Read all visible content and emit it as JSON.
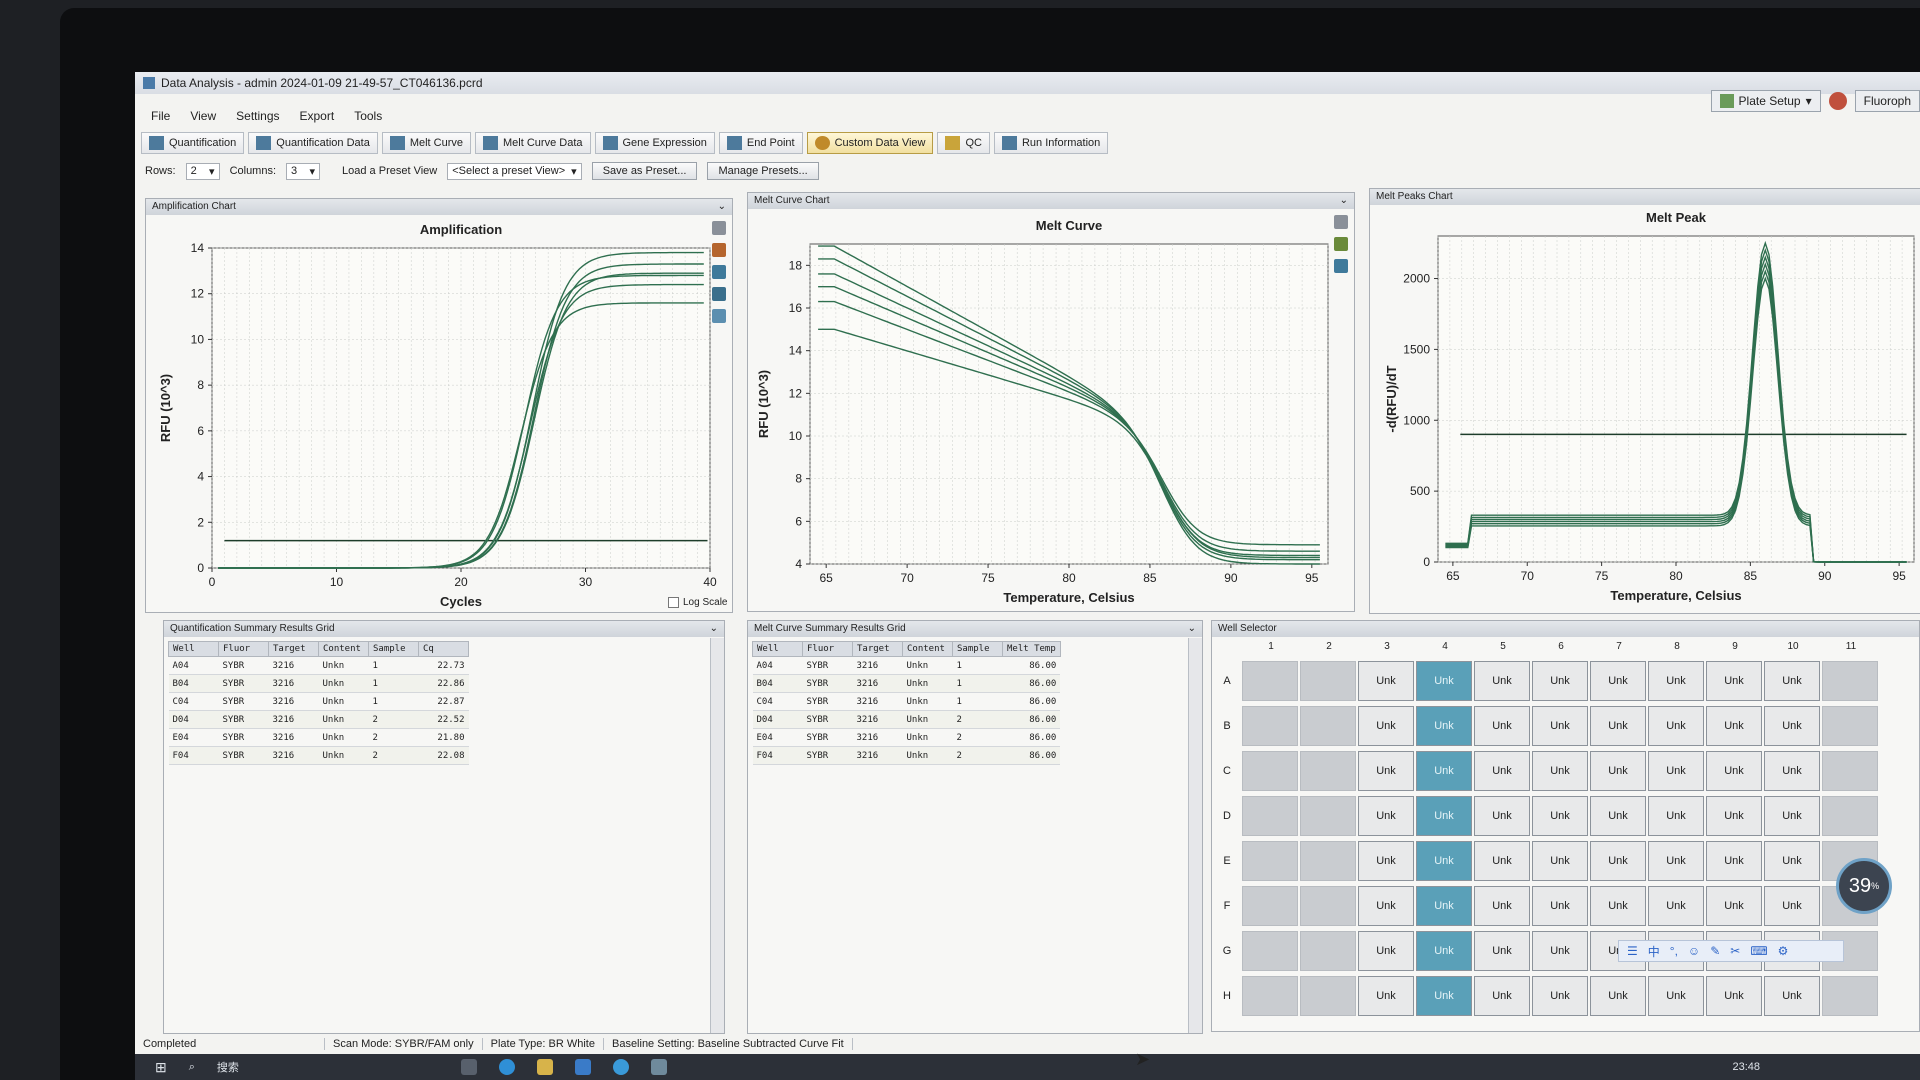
{
  "window": {
    "title": "Data Analysis - admin 2024-01-09 21-49-57_CT046136.pcrd"
  },
  "menu": [
    "File",
    "View",
    "Settings",
    "Export",
    "Tools"
  ],
  "top_right": {
    "plate_setup": "Plate Setup",
    "fluoro": "Fluoroph"
  },
  "tabs": [
    "Quantification",
    "Quantification Data",
    "Melt Curve",
    "Melt Curve Data",
    "Gene Expression",
    "End Point",
    "Custom Data View",
    "QC",
    "Run Information"
  ],
  "active_tab": "Custom Data View",
  "options": {
    "rows_label": "Rows:",
    "rows_value": "2",
    "columns_label": "Columns:",
    "columns_value": "3",
    "load_preset_label": "Load a Preset View",
    "preset_select": "<Select a preset View>",
    "save_preset": "Save as Preset...",
    "manage_presets": "Manage Presets..."
  },
  "panels": {
    "amp": {
      "header": "Amplification Chart",
      "log_scale": "Log Scale"
    },
    "melt": {
      "header": "Melt Curve Chart"
    },
    "peak": {
      "header": "Melt Peaks Chart"
    },
    "quant_grid": {
      "header": "Quantification Summary Results Grid"
    },
    "melt_grid": {
      "header": "Melt Curve Summary Results Grid"
    },
    "well_selector": {
      "header": "Well Selector"
    }
  },
  "quant_table": {
    "columns": [
      "Well",
      "Fluor",
      "Target",
      "Content",
      "Sample",
      "Cq"
    ],
    "rows": [
      [
        "A04",
        "SYBR",
        "3216",
        "Unkn",
        "1",
        "22.73"
      ],
      [
        "B04",
        "SYBR",
        "3216",
        "Unkn",
        "1",
        "22.86"
      ],
      [
        "C04",
        "SYBR",
        "3216",
        "Unkn",
        "1",
        "22.87"
      ],
      [
        "D04",
        "SYBR",
        "3216",
        "Unkn",
        "2",
        "22.52"
      ],
      [
        "E04",
        "SYBR",
        "3216",
        "Unkn",
        "2",
        "21.80"
      ],
      [
        "F04",
        "SYBR",
        "3216",
        "Unkn",
        "2",
        "22.08"
      ]
    ]
  },
  "melt_table": {
    "columns": [
      "Well",
      "Fluor",
      "Target",
      "Content",
      "Sample",
      "Melt Temp"
    ],
    "rows": [
      [
        "A04",
        "SYBR",
        "3216",
        "Unkn",
        "1",
        "86.00"
      ],
      [
        "B04",
        "SYBR",
        "3216",
        "Unkn",
        "1",
        "86.00"
      ],
      [
        "C04",
        "SYBR",
        "3216",
        "Unkn",
        "1",
        "86.00"
      ],
      [
        "D04",
        "SYBR",
        "3216",
        "Unkn",
        "2",
        "86.00"
      ],
      [
        "E04",
        "SYBR",
        "3216",
        "Unkn",
        "2",
        "86.00"
      ],
      [
        "F04",
        "SYBR",
        "3216",
        "Unkn",
        "2",
        "86.00"
      ]
    ]
  },
  "well_selector": {
    "col_labels": [
      "1",
      "2",
      "3",
      "4",
      "5",
      "6",
      "7",
      "8",
      "9",
      "10",
      "11"
    ],
    "row_labels": [
      "A",
      "B",
      "C",
      "D",
      "E",
      "F",
      "G",
      "H"
    ],
    "well_text": "Unk",
    "selected_column": "4"
  },
  "status": {
    "state": "Completed",
    "scan_mode": "Scan Mode: SYBR/FAM only",
    "plate_type": "Plate Type: BR White",
    "baseline": "Baseline Setting: Baseline Subtracted Curve Fit"
  },
  "taskbar": {
    "search": "搜索",
    "clock": "23:48"
  },
  "overlay": {
    "percent": "39"
  },
  "colors": {
    "selected_well": "#5aa0b8",
    "curve": "#2f6f4f",
    "threshold": "#1d3d2a"
  },
  "chart_data": [
    {
      "type": "line",
      "title": "Amplification",
      "xlabel": "Cycles",
      "ylabel": "RFU (10^3)",
      "xlim": [
        0,
        40
      ],
      "ylim": [
        0,
        14
      ],
      "xticks": [
        0,
        10,
        20,
        30,
        40
      ],
      "yticks": [
        0,
        2,
        4,
        6,
        8,
        10,
        12,
        14
      ],
      "threshold": 1.2,
      "log_scale": false,
      "series": [
        {
          "cq": 22.73,
          "plateau": 13.8
        },
        {
          "cq": 22.86,
          "plateau": 13.3
        },
        {
          "cq": 22.87,
          "plateau": 12.9
        },
        {
          "cq": 22.52,
          "plateau": 12.4
        },
        {
          "cq": 21.8,
          "plateau": 11.6
        },
        {
          "cq": 22.08,
          "plateau": 12.8
        }
      ]
    },
    {
      "type": "line",
      "title": "Melt Curve",
      "xlabel": "Temperature, Celsius",
      "ylabel": "RFU (10^3)",
      "xlim": [
        64,
        96
      ],
      "ylim": [
        4,
        19
      ],
      "xticks": [
        65,
        70,
        75,
        80,
        85,
        90,
        95
      ],
      "yticks": [
        4,
        6,
        8,
        10,
        12,
        14,
        16,
        18
      ],
      "melt_temp": 86,
      "series": [
        {
          "start": 18.9,
          "end": 4.0
        },
        {
          "start": 18.3,
          "end": 4.2
        },
        {
          "start": 17.6,
          "end": 4.4
        },
        {
          "start": 17.0,
          "end": 4.6
        },
        {
          "start": 16.3,
          "end": 4.9
        },
        {
          "start": 15.0,
          "end": 4.3
        }
      ]
    },
    {
      "type": "line",
      "title": "Melt Peak",
      "xlabel": "Temperature, Celsius",
      "ylabel": "-d(RFU)/dT",
      "xlim": [
        64,
        96
      ],
      "ylim": [
        0,
        2300
      ],
      "xticks": [
        65,
        70,
        75,
        80,
        85,
        90,
        95
      ],
      "yticks": [
        0,
        500,
        1000,
        1500,
        2000
      ],
      "threshold": 900,
      "peak_temp": 86,
      "series": [
        {
          "baseline": 330,
          "peak": 2250
        },
        {
          "baseline": 315,
          "peak": 2200
        },
        {
          "baseline": 300,
          "peak": 2150
        },
        {
          "baseline": 285,
          "peak": 2100
        },
        {
          "baseline": 270,
          "peak": 2050
        },
        {
          "baseline": 255,
          "peak": 2000
        }
      ]
    }
  ]
}
